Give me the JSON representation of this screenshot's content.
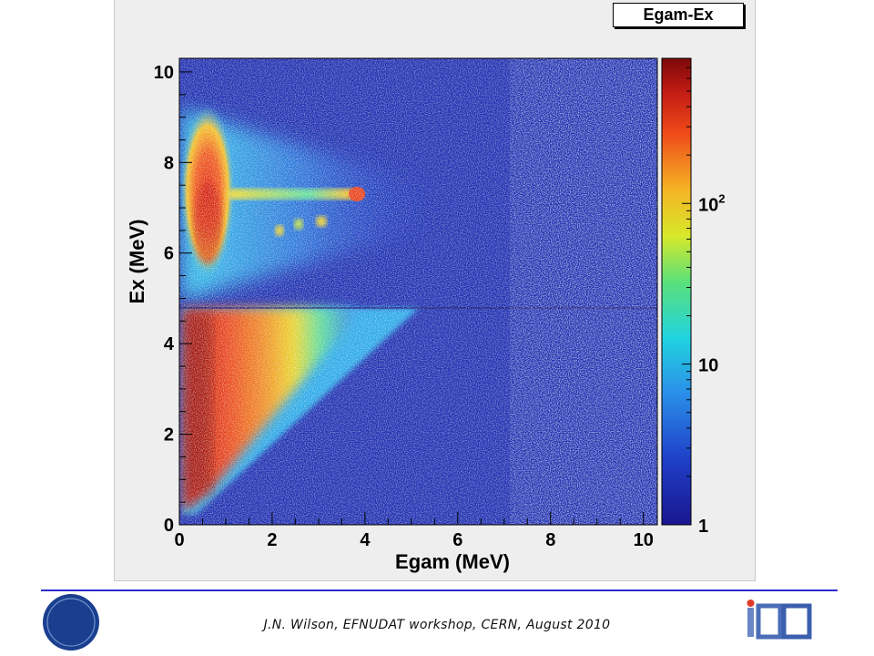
{
  "histogram": {
    "name": "Egam-Ex"
  },
  "colors": {
    "accent_rule": "#2b2bd0",
    "frame_bg": "#eeeeee"
  },
  "chart_data": {
    "type": "heatmap",
    "title": "",
    "xlabel": "Egam (MeV)",
    "ylabel": "Ex (MeV)",
    "xlim": [
      0,
      10.3
    ],
    "ylim": [
      0,
      10.3
    ],
    "x_ticks": [
      0,
      2,
      4,
      6,
      8,
      10
    ],
    "y_ticks": [
      0,
      2,
      4,
      6,
      8,
      10
    ],
    "z_scale": "log",
    "z_range": [
      1,
      800
    ],
    "z_ticks": [
      {
        "value": 1,
        "label": "1"
      },
      {
        "value": 10,
        "label": "10"
      },
      {
        "value": 100,
        "label": "10",
        "sup": "2"
      }
    ],
    "colormap": "rainbow (blue → cyan → green → yellow → red → dark red)",
    "features": [
      {
        "description": "dense band",
        "x_range": [
          0.2,
          3.0
        ],
        "y_range": [
          0,
          4.8
        ],
        "level": "high"
      },
      {
        "description": "diagonal edge Egam = Ex",
        "x_range": [
          0,
          4.7
        ],
        "y_range": [
          0,
          4.7
        ]
      },
      {
        "description": "high-count cluster",
        "x_range": [
          0.3,
          1.3
        ],
        "y_range": [
          5.4,
          9.0
        ],
        "level": "high"
      },
      {
        "description": "horizontal streak",
        "x_range": [
          0.5,
          3.9
        ],
        "y_range": [
          7.0,
          7.4
        ],
        "level": "medium"
      },
      {
        "description": "spots",
        "x_range": [
          2.0,
          3.2
        ],
        "y_range": [
          6.3,
          6.7
        ],
        "level": "medium"
      },
      {
        "description": "sharp horizontal cut",
        "y_value": 4.8
      }
    ]
  },
  "footer": {
    "text": "J.N. Wilson,  EFNUDAT workshop, CERN, August 2010",
    "left_logo_text": "cnrs",
    "right_logo_text": "IPN",
    "right_logo_subtext": "orsay"
  }
}
